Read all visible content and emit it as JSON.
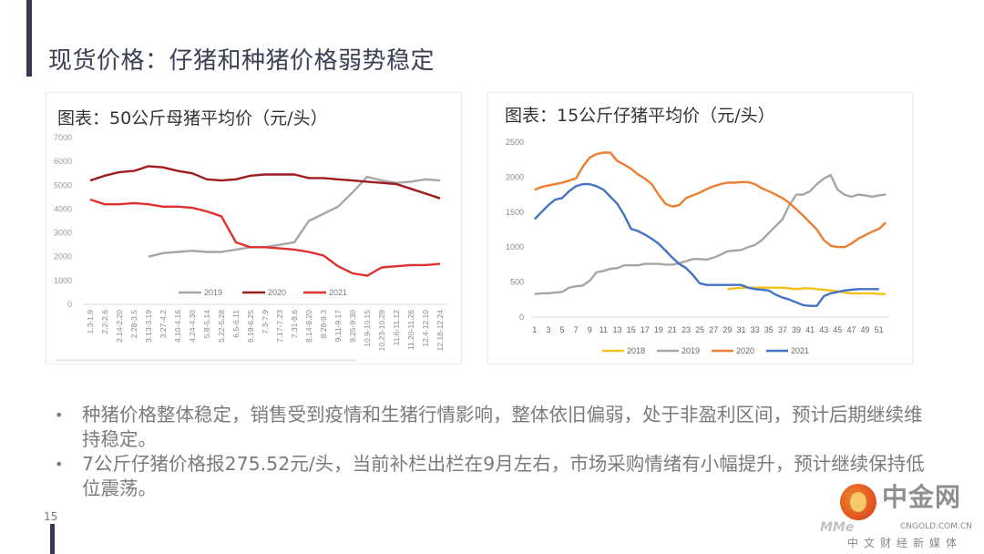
{
  "slide": {
    "title": "现货价格：仔猪和种猪价格弱势稳定",
    "page_number": "15"
  },
  "bullets": [
    "种猪价格整体稳定，销售受到疫情和生猪行情影响，整体依旧偏弱，处于非盈利区间，预计后期继续维持稳定。",
    "7公斤仔猪价格报275.52元/头，当前补栏出栏在9月左右，市场采购情绪有小幅提升，预计继续保持低位震荡。"
  ],
  "logo": {
    "name": "中金网",
    "url": "CNGOLD.COM.CN",
    "tagline": "中文财经新媒体",
    "watermark": "MMe"
  },
  "chart_data": [
    {
      "type": "line",
      "title": "图表：50公斤母猪平均价（元/头）",
      "xlabel": "",
      "ylabel": "",
      "ylim": [
        0,
        7000
      ],
      "yticks": [
        "0",
        "1000",
        "2000",
        "3000",
        "4000",
        "5000",
        "6000",
        "7000"
      ],
      "yticks_values": [
        0,
        1000,
        2000,
        3000,
        4000,
        5000,
        6000,
        7000
      ],
      "categories": [
        "1.3-1.9",
        "2.2-2.6",
        "2.14-2.20",
        "2.28-3.5",
        "3.13-3.19",
        "3.27-4.2",
        "4.10-4.16",
        "4.24-4.30",
        "5.8-5.14",
        "5.22-5.28",
        "6.5-6.11",
        "6.19-6.25",
        "7.3-7.9",
        "7.17-7.23",
        "7.31-8.6",
        "8.14-8.20",
        "8.28-9.3",
        "9.11-9.17",
        "9.25-9.30",
        "10.9-10.15",
        "10.23-10.29",
        "11.6-11.12",
        "11.20-11.26",
        "12.4-12.10",
        "12.18-12.24"
      ],
      "legend_position": "bottom",
      "series": [
        {
          "name": "2019",
          "color": "#a6a6a6",
          "values": [
            null,
            null,
            null,
            null,
            2000,
            2150,
            2200,
            2250,
            2200,
            2200,
            2300,
            2400,
            2400,
            2500,
            2600,
            3500,
            3800,
            4100,
            4700,
            5350,
            5200,
            5100,
            5150,
            5250,
            5200
          ]
        },
        {
          "name": "2020",
          "color": "#9e1c1c",
          "values": [
            5200,
            5400,
            5550,
            5600,
            5800,
            5750,
            5600,
            5500,
            5250,
            5200,
            5250,
            5400,
            5450,
            5450,
            5450,
            5300,
            5300,
            5250,
            5200,
            5150,
            5100,
            5050,
            4850,
            4650,
            4450
          ]
        },
        {
          "name": "2021",
          "color": "#e03030",
          "values": [
            4400,
            4200,
            4200,
            4250,
            4200,
            4100,
            4100,
            4050,
            3900,
            3700,
            2600,
            2400,
            2400,
            2350,
            2300,
            2200,
            2050,
            1600,
            1300,
            1200,
            1550,
            1600,
            1650,
            1650,
            1700
          ]
        }
      ]
    },
    {
      "type": "line",
      "title": "图表：15公斤仔猪平均价（元/头）",
      "xlabel": "",
      "ylabel": "",
      "ylim": [
        0,
        2500
      ],
      "yticks": [
        "0",
        "500",
        "1000",
        "1500",
        "2000",
        "2500"
      ],
      "yticks_values": [
        0,
        500,
        1000,
        1500,
        2000,
        2500
      ],
      "x": [
        1,
        2,
        3,
        4,
        5,
        6,
        7,
        8,
        9,
        10,
        11,
        12,
        13,
        14,
        15,
        16,
        17,
        18,
        19,
        20,
        21,
        22,
        23,
        24,
        25,
        26,
        27,
        28,
        29,
        30,
        31,
        32,
        33,
        34,
        35,
        36,
        37,
        38,
        39,
        40,
        41,
        42,
        43,
        44,
        45,
        46,
        47,
        48,
        49,
        50,
        51,
        52
      ],
      "xticks": [
        "1",
        "3",
        "5",
        "7",
        "9",
        "11",
        "13",
        "15",
        "17",
        "19",
        "21",
        "23",
        "25",
        "27",
        "29",
        "31",
        "33",
        "35",
        "37",
        "39",
        "41",
        "43",
        "45",
        "47",
        "49",
        "51"
      ],
      "legend_position": "bottom",
      "series": [
        {
          "name": "2018",
          "color": "#f2c21b",
          "values": [
            null,
            null,
            null,
            null,
            null,
            null,
            null,
            null,
            null,
            null,
            null,
            null,
            null,
            null,
            null,
            null,
            null,
            null,
            null,
            null,
            null,
            null,
            null,
            null,
            null,
            null,
            null,
            null,
            400,
            410,
            420,
            420,
            420,
            420,
            420,
            420,
            420,
            410,
            400,
            410,
            410,
            400,
            390,
            380,
            370,
            350,
            340,
            340,
            340,
            340,
            330,
            330
          ]
        },
        {
          "name": "2019",
          "color": "#a6a6a6",
          "values": [
            330,
            340,
            340,
            350,
            360,
            420,
            440,
            450,
            520,
            640,
            660,
            690,
            700,
            740,
            740,
            740,
            760,
            760,
            760,
            750,
            750,
            770,
            800,
            830,
            830,
            820,
            850,
            890,
            940,
            950,
            960,
            1000,
            1030,
            1100,
            1200,
            1300,
            1400,
            1600,
            1750,
            1750,
            1800,
            1900,
            1980,
            2030,
            1820,
            1750,
            1720,
            1750,
            1740,
            1720,
            1740,
            1750
          ]
        },
        {
          "name": "2020",
          "color": "#ed7d31",
          "values": [
            1820,
            1860,
            1880,
            1900,
            1920,
            1950,
            1980,
            2150,
            2280,
            2330,
            2350,
            2350,
            2230,
            2180,
            2120,
            2040,
            1980,
            1900,
            1750,
            1620,
            1580,
            1600,
            1700,
            1740,
            1780,
            1830,
            1870,
            1900,
            1920,
            1920,
            1930,
            1930,
            1900,
            1840,
            1800,
            1750,
            1700,
            1630,
            1540,
            1450,
            1350,
            1250,
            1100,
            1020,
            1000,
            1000,
            1050,
            1120,
            1170,
            1220,
            1260,
            1350
          ]
        },
        {
          "name": "2021",
          "color": "#4472c4",
          "values": [
            1400,
            1500,
            1600,
            1680,
            1700,
            1800,
            1870,
            1900,
            1900,
            1870,
            1820,
            1720,
            1620,
            1460,
            1260,
            1230,
            1180,
            1120,
            1050,
            950,
            850,
            760,
            700,
            600,
            480,
            460,
            460,
            460,
            460,
            460,
            460,
            420,
            400,
            390,
            380,
            320,
            280,
            250,
            210,
            170,
            160,
            160,
            300,
            340,
            360,
            380,
            390,
            400,
            400,
            400,
            400,
            null
          ]
        }
      ]
    }
  ]
}
